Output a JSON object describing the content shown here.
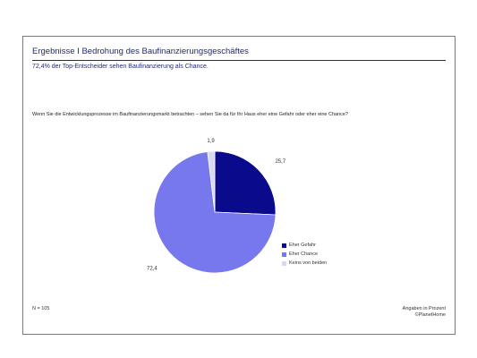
{
  "slide": {
    "title": "Ergebnisse I Bedrohung des Baufinanzierungsgeschäftes",
    "subtitle": "72,4% der Top-Entscheider sehen Baufinanzierung als Chance.",
    "question": "Wenn Sie die Entwicklungsprozesse im Baufinanzierungsmarkt betrachten – sehen Sie da für Ihr Haus eher eine Gefahr oder eher eine Chance?",
    "sample_size": "N = 105",
    "unit_note": "Angaben in Prozent",
    "source": "©PlanetHome"
  },
  "chart_data": {
    "type": "pie",
    "slices": [
      {
        "name": "Eher Gefahr",
        "value": 25.7,
        "label": "25,7",
        "color": "#0a0a8c"
      },
      {
        "name": "Eher Chance",
        "value": 72.4,
        "label": "72,4",
        "color": "#7777ee"
      },
      {
        "name": "Keins von beiden",
        "value": 1.9,
        "label": "1,9",
        "color": "#d8d8f5"
      }
    ],
    "legend_position": "right-bottom",
    "start": "top-clockwise"
  }
}
